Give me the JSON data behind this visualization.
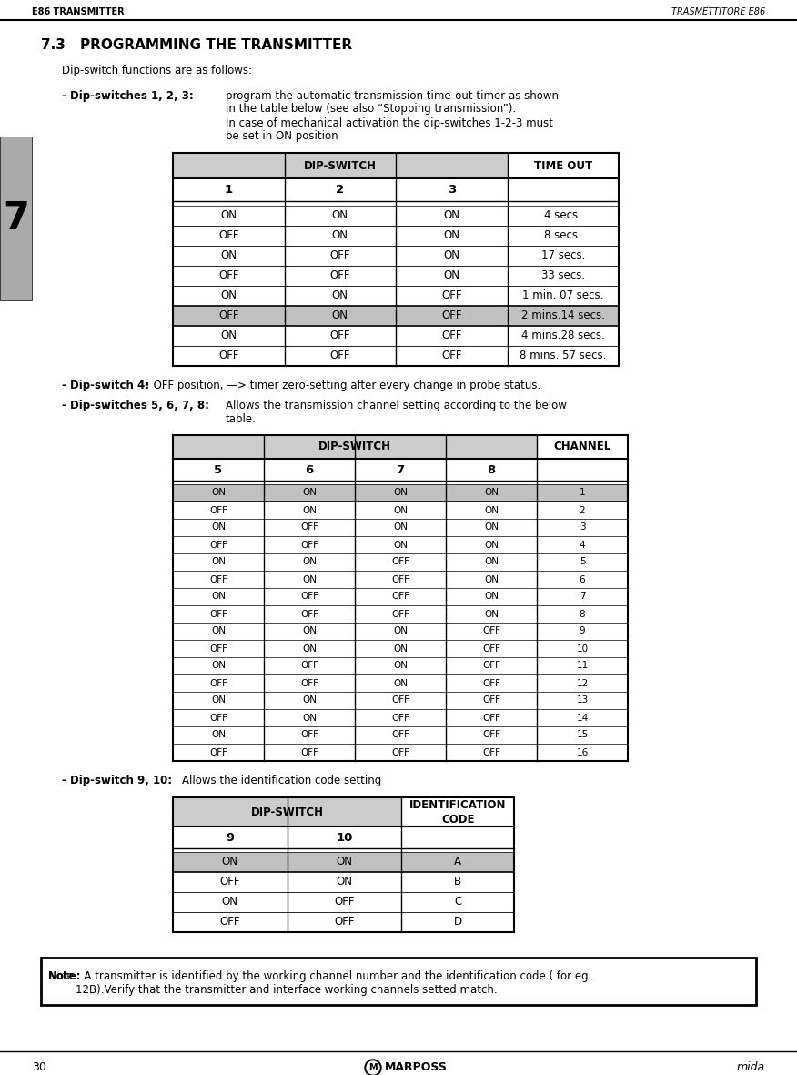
{
  "header_left": "E86 TRANSMITTER",
  "header_right": "TRASMETTITORE E86",
  "section": "7.3",
  "title": "PROGRAMMING THE TRANSMITTER",
  "intro": "Dip-switch functions are as follows:",
  "dip123_label": "- Dip-switches 1, 2, 3:",
  "dip123_text1": "program the automatic transmission time-out timer as shown",
  "dip123_text2": "in the table below (see also “Stopping transmission”).",
  "dip123_text3": "In case of mechanical activation the dip-switches 1-2-3 must",
  "dip123_text4": "be set in ON position",
  "table1_header_dipswitch": "DIP-SWITCH",
  "table1_header_timeout": "TIME OUT",
  "table1_col_headers": [
    "1",
    "2",
    "3"
  ],
  "table1_rows": [
    [
      "ON",
      "ON",
      "ON",
      "4 secs."
    ],
    [
      "OFF",
      "ON",
      "ON",
      "8 secs."
    ],
    [
      "ON",
      "OFF",
      "ON",
      "17 secs."
    ],
    [
      "OFF",
      "OFF",
      "ON",
      "33 secs."
    ],
    [
      "ON",
      "ON",
      "OFF",
      "1 min. 07 secs."
    ],
    [
      "OFF",
      "ON",
      "OFF",
      "2 mins.14 secs."
    ],
    [
      "ON",
      "OFF",
      "OFF",
      "4 mins.28 secs."
    ],
    [
      "OFF",
      "OFF",
      "OFF",
      "8 mins. 57 secs."
    ]
  ],
  "table1_highlighted_row": 5,
  "dip4_label": "- Dip-switch 4:",
  "dip4_bullet": "• OFF position, —> timer zero-setting after every change in probe status.",
  "dip5678_label": "- Dip-switches 5, 6, 7, 8:",
  "dip5678_text1": "Allows the transmission channel setting according to the below",
  "dip5678_text2": "table.",
  "table2_header_dipswitch": "DIP-SWITCH",
  "table2_header_channel": "CHANNEL",
  "table2_col_headers": [
    "5",
    "6",
    "7",
    "8"
  ],
  "table2_rows": [
    [
      "ON",
      "ON",
      "ON",
      "ON",
      "1"
    ],
    [
      "OFF",
      "ON",
      "ON",
      "ON",
      "2"
    ],
    [
      "ON",
      "OFF",
      "ON",
      "ON",
      "3"
    ],
    [
      "OFF",
      "OFF",
      "ON",
      "ON",
      "4"
    ],
    [
      "ON",
      "ON",
      "OFF",
      "ON",
      "5"
    ],
    [
      "OFF",
      "ON",
      "OFF",
      "ON",
      "6"
    ],
    [
      "ON",
      "OFF",
      "OFF",
      "ON",
      "7"
    ],
    [
      "OFF",
      "OFF",
      "OFF",
      "ON",
      "8"
    ],
    [
      "ON",
      "ON",
      "ON",
      "OFF",
      "9"
    ],
    [
      "OFF",
      "ON",
      "ON",
      "OFF",
      "10"
    ],
    [
      "ON",
      "OFF",
      "ON",
      "OFF",
      "11"
    ],
    [
      "OFF",
      "OFF",
      "ON",
      "OFF",
      "12"
    ],
    [
      "ON",
      "ON",
      "OFF",
      "OFF",
      "13"
    ],
    [
      "OFF",
      "ON",
      "OFF",
      "OFF",
      "14"
    ],
    [
      "ON",
      "OFF",
      "OFF",
      "OFF",
      "15"
    ],
    [
      "OFF",
      "OFF",
      "OFF",
      "OFF",
      "16"
    ]
  ],
  "table2_highlighted_row": 0,
  "dip910_label": "- Dip-switch 9, 10:",
  "dip910_text": "Allows the identification code setting",
  "table3_header_dipswitch": "DIP-SWITCH",
  "table3_header_id": "IDENTIFICATION\nCODE",
  "table3_col_headers": [
    "9",
    "10"
  ],
  "table3_rows": [
    [
      "ON",
      "ON",
      "A"
    ],
    [
      "OFF",
      "ON",
      "B"
    ],
    [
      "ON",
      "OFF",
      "C"
    ],
    [
      "OFF",
      "OFF",
      "D"
    ]
  ],
  "table3_highlighted_row": 0,
  "note_bold": "Note: ",
  "note_text": " A transmitter is identified by the working channel number and the identification code ( for eg.\n        12B).Verify that the transmitter and interface working channels setted match.",
  "page_number": "30",
  "footer_brand": "MARPOSS",
  "footer_right": "mida",
  "bg_color": "#ffffff",
  "table_header_bg": "#cccccc",
  "highlight_color": "#c0c0c0",
  "side_tab_bg": "#aaaaaa"
}
